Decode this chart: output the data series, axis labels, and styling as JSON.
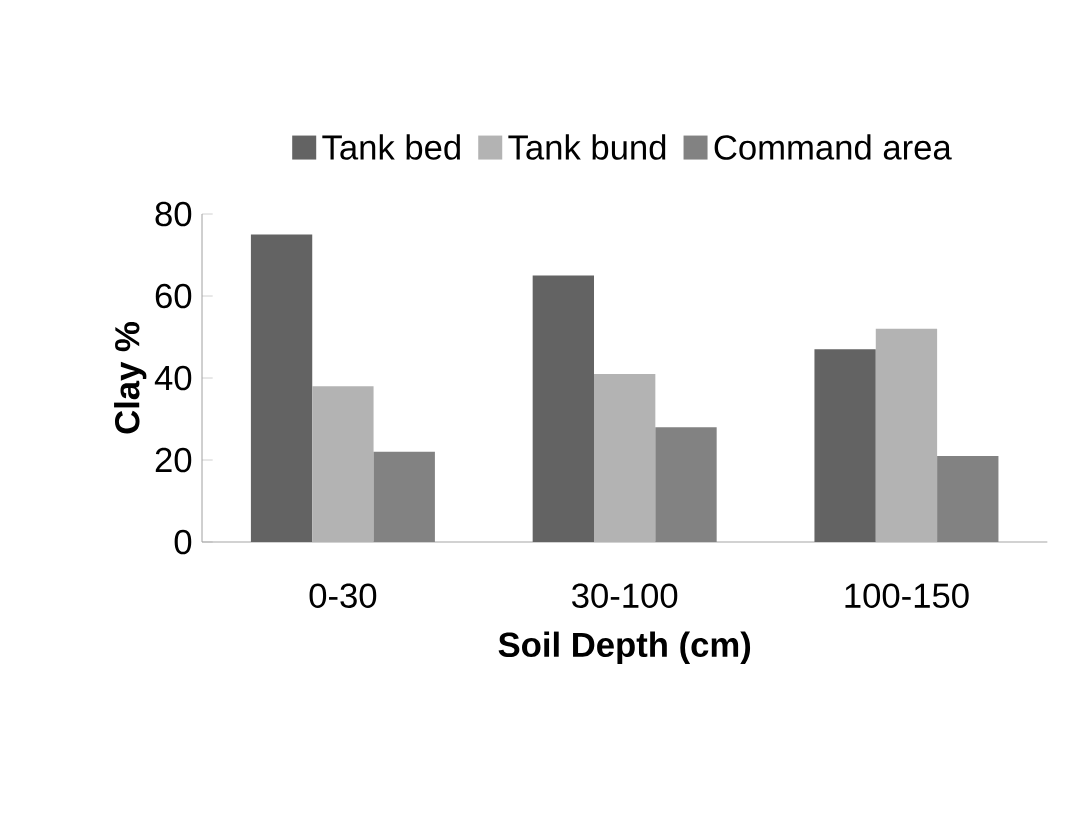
{
  "chart_data": {
    "type": "bar",
    "xlabel": "Soil Depth (cm)",
    "ylabel": "Clay %",
    "categories": [
      "0-30",
      "30-100",
      "100-150"
    ],
    "series": [
      {
        "name": "Tank bed",
        "color": "#636363",
        "values": [
          75,
          65,
          47
        ]
      },
      {
        "name": "Tank bund",
        "color": "#b3b3b3",
        "values": [
          38,
          41,
          52
        ]
      },
      {
        "name": "Command area",
        "color": "#828282",
        "values": [
          22,
          28,
          21
        ]
      }
    ],
    "ylim": [
      0,
      80
    ],
    "yticks": [
      0,
      20,
      40,
      60,
      80
    ],
    "grid": false,
    "legend": "top"
  }
}
